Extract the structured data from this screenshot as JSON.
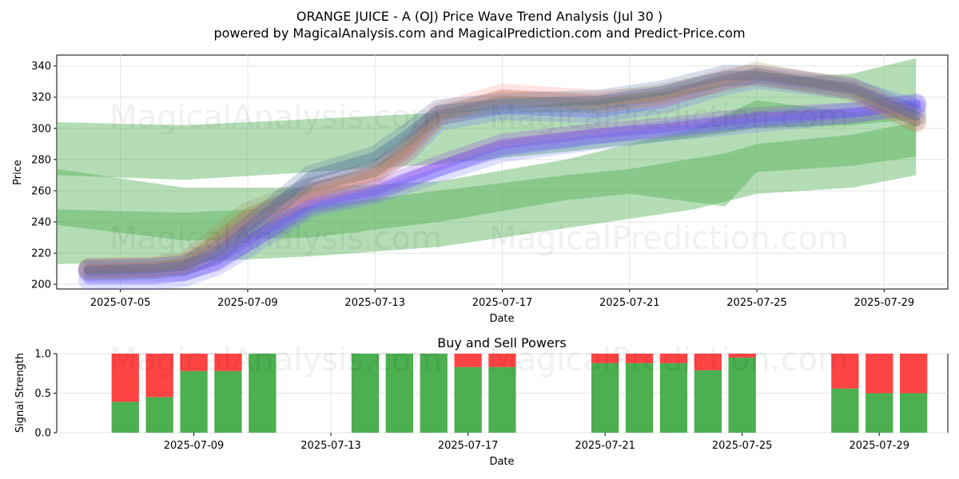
{
  "header": {
    "title": "ORANGE JUICE - A (OJ) Price Wave Trend Analysis (Jul 30 )",
    "subtitle": "powered by MagicalAnalysis.com and MagicalPrediction.com and Predict-Price.com"
  },
  "watermarks": [
    "MagicalAnalysis.com",
    "MagicalPrediction.com"
  ],
  "colors": {
    "green_band": "#4caf50",
    "buy": "#4caf50",
    "sell": "#ff4444",
    "blue": "#6b6bff",
    "purple": "#8a2be2",
    "red": "#ff8080",
    "olive": "#9a8a50",
    "steel": "#4a6a9a"
  },
  "chart_data": [
    {
      "type": "area",
      "title": "",
      "xlabel": "Date",
      "ylabel": "Price",
      "ylim": [
        197,
        347
      ],
      "xlim": [
        "2025-07-03",
        "2025-07-31"
      ],
      "yticks": [
        200,
        220,
        240,
        260,
        280,
        300,
        320,
        340
      ],
      "xticks": [
        "2025-07-05",
        "2025-07-09",
        "2025-07-13",
        "2025-07-17",
        "2025-07-21",
        "2025-07-25",
        "2025-07-29"
      ],
      "grid": true,
      "green_bands": [
        {
          "dates": [
            "2025-07-03",
            "2025-07-07",
            "2025-07-11",
            "2025-07-15",
            "2025-07-19",
            "2025-07-23",
            "2025-07-25",
            "2025-07-28",
            "2025-07-30"
          ],
          "upper": [
            304,
            302,
            306,
            310,
            316,
            325,
            332,
            335,
            345
          ],
          "lower": [
            270,
            267,
            272,
            277,
            285,
            294,
            300,
            302,
            306
          ]
        },
        {
          "dates": [
            "2025-07-03",
            "2025-07-07",
            "2025-07-11",
            "2025-07-15",
            "2025-07-19",
            "2025-07-23",
            "2025-07-25",
            "2025-07-28",
            "2025-07-30"
          ],
          "upper": [
            274,
            262,
            262,
            266,
            280,
            300,
            318,
            310,
            317
          ],
          "lower": [
            213,
            214,
            218,
            224,
            236,
            248,
            258,
            262,
            270
          ]
        },
        {
          "dates": [
            "2025-07-03",
            "2025-07-07",
            "2025-07-11",
            "2025-07-15",
            "2025-07-19",
            "2025-07-21",
            "2025-07-24",
            "2025-07-25",
            "2025-07-28",
            "2025-07-30"
          ],
          "upper": [
            248,
            246,
            250,
            260,
            270,
            274,
            284,
            290,
            296,
            304
          ],
          "lower": [
            238,
            228,
            230,
            240,
            254,
            258,
            250,
            272,
            276,
            282
          ]
        }
      ],
      "series": [
        {
          "color": "purple",
          "dates": [
            "2025-07-04",
            "2025-07-06",
            "2025-07-07",
            "2025-07-08",
            "2025-07-09",
            "2025-07-11",
            "2025-07-13",
            "2025-07-15",
            "2025-07-17",
            "2025-07-20",
            "2025-07-22",
            "2025-07-25",
            "2025-07-28",
            "2025-07-30"
          ],
          "values": [
            208,
            208,
            209,
            215,
            228,
            252,
            260,
            276,
            290,
            297,
            300,
            307,
            310,
            315
          ]
        },
        {
          "color": "blue",
          "dates": [
            "2025-07-04",
            "2025-07-06",
            "2025-07-07",
            "2025-07-08",
            "2025-07-09",
            "2025-07-11",
            "2025-07-13",
            "2025-07-15",
            "2025-07-17",
            "2025-07-20",
            "2025-07-22",
            "2025-07-25",
            "2025-07-28",
            "2025-07-30"
          ],
          "values": [
            203,
            203,
            205,
            212,
            224,
            250,
            258,
            272,
            285,
            293,
            298,
            304,
            310,
            316
          ]
        },
        {
          "color": "blue",
          "dates": [
            "2025-07-04",
            "2025-07-06",
            "2025-07-07",
            "2025-07-08",
            "2025-07-09",
            "2025-07-11",
            "2025-07-13",
            "2025-07-14",
            "2025-07-15",
            "2025-07-17",
            "2025-07-20",
            "2025-07-22",
            "2025-07-24",
            "2025-07-25",
            "2025-07-28",
            "2025-07-30"
          ],
          "values": [
            210,
            210,
            212,
            222,
            238,
            262,
            272,
            285,
            305,
            312,
            310,
            316,
            328,
            332,
            325,
            312
          ]
        },
        {
          "color": "red",
          "dates": [
            "2025-07-04",
            "2025-07-06",
            "2025-07-07",
            "2025-07-08",
            "2025-07-09",
            "2025-07-11",
            "2025-07-13",
            "2025-07-14",
            "2025-07-15",
            "2025-07-17",
            "2025-07-20",
            "2025-07-22",
            "2025-07-24",
            "2025-07-25",
            "2025-07-28",
            "2025-07-30"
          ],
          "values": [
            210,
            211,
            213,
            224,
            240,
            258,
            270,
            285,
            310,
            322,
            318,
            320,
            332,
            334,
            326,
            305
          ]
        },
        {
          "color": "olive",
          "dates": [
            "2025-07-04",
            "2025-07-06",
            "2025-07-07",
            "2025-07-08",
            "2025-07-09",
            "2025-07-11",
            "2025-07-13",
            "2025-07-14",
            "2025-07-15",
            "2025-07-17",
            "2025-07-20",
            "2025-07-22",
            "2025-07-24",
            "2025-07-25",
            "2025-07-28",
            "2025-07-30"
          ],
          "values": [
            210,
            211,
            214,
            230,
            246,
            262,
            272,
            288,
            308,
            318,
            316,
            322,
            330,
            336,
            324,
            304
          ]
        },
        {
          "color": "steel",
          "dates": [
            "2025-07-04",
            "2025-07-06",
            "2025-07-07",
            "2025-07-08",
            "2025-07-09",
            "2025-07-11",
            "2025-07-13",
            "2025-07-14",
            "2025-07-15",
            "2025-07-17",
            "2025-07-20",
            "2025-07-22",
            "2025-07-24",
            "2025-07-25",
            "2025-07-28",
            "2025-07-30"
          ],
          "values": [
            209,
            210,
            212,
            220,
            236,
            270,
            282,
            296,
            312,
            316,
            318,
            324,
            334,
            334,
            326,
            308
          ]
        }
      ]
    },
    {
      "type": "bar",
      "title": "Buy and Sell Powers",
      "xlabel": "Date",
      "ylabel": "Signal Strength",
      "ylim": [
        0,
        1
      ],
      "xlim": [
        "2025-07-05.9",
        "2025-07-31"
      ],
      "yticks": [
        "0.0",
        "0.5",
        "1.0"
      ],
      "xticks": [
        "2025-07-09",
        "2025-07-13",
        "2025-07-17",
        "2025-07-21",
        "2025-07-25",
        "2025-07-29"
      ],
      "grid": true,
      "categories": [
        "2025-07-07",
        "2025-07-08",
        "2025-07-09",
        "2025-07-10",
        "2025-07-11",
        "2025-07-14",
        "2025-07-15",
        "2025-07-16",
        "2025-07-17",
        "2025-07-18",
        "2025-07-21",
        "2025-07-22",
        "2025-07-23",
        "2025-07-24",
        "2025-07-25",
        "2025-07-28",
        "2025-07-29",
        "2025-07-30"
      ],
      "series": [
        {
          "name": "Buy",
          "values": [
            0.39,
            0.45,
            0.78,
            0.78,
            1.0,
            1.0,
            1.0,
            1.0,
            0.83,
            0.83,
            0.88,
            0.88,
            0.88,
            0.79,
            0.95,
            0.56,
            0.5,
            0.5
          ]
        },
        {
          "name": "Sell",
          "values": [
            0.61,
            0.55,
            0.22,
            0.22,
            0.0,
            0.0,
            0.0,
            0.0,
            0.17,
            0.17,
            0.12,
            0.12,
            0.12,
            0.21,
            0.05,
            0.44,
            0.5,
            0.5
          ]
        }
      ]
    }
  ]
}
